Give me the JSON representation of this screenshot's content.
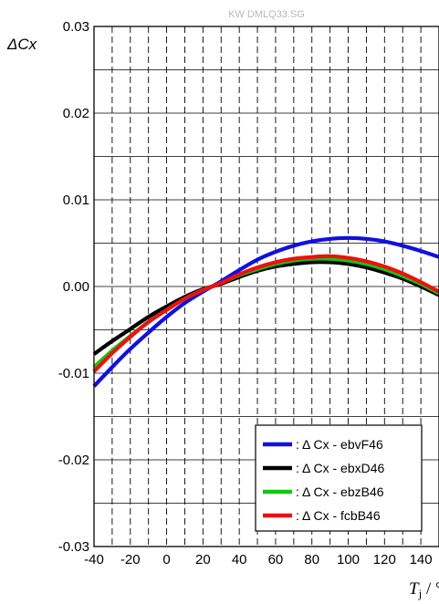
{
  "watermark": "KW DMLQ33.SG",
  "chart_data": {
    "type": "line",
    "ylabel": "ΔCx",
    "xlabel_symbol": "T",
    "xlabel_subscript": "j",
    "xlabel_unit": " / °C",
    "xlim": [
      -40,
      150
    ],
    "ylim": [
      -0.03,
      0.03
    ],
    "x_ticks": [
      -40,
      -20,
      0,
      20,
      40,
      60,
      80,
      100,
      120,
      140
    ],
    "x_tick_labels": [
      "-40",
      "-20",
      "0",
      "20",
      "40",
      "60",
      "80",
      "100",
      "120",
      "140"
    ],
    "y_ticks": [
      -0.03,
      -0.02,
      -0.01,
      0.0,
      0.01,
      0.02,
      0.03
    ],
    "y_tick_labels": [
      "-0.03",
      "-0.02",
      "-0.01",
      "0.00",
      "0.01",
      "0.02",
      "0.03"
    ],
    "grid": "x-minor-dashed, y-major-solid",
    "legend_position": "bottom-right",
    "series": [
      {
        "name": ": Δ Cx - ebvF46",
        "color": "#1010e0",
        "x": [
          -40,
          -30,
          -20,
          -10,
          0,
          10,
          20,
          25,
          30,
          40,
          50,
          60,
          70,
          80,
          90,
          100,
          110,
          120,
          130,
          140,
          150
        ],
        "y": [
          -0.0115,
          -0.0093,
          -0.0072,
          -0.0053,
          -0.0035,
          -0.0019,
          -0.0006,
          0.0,
          0.0006,
          0.0019,
          0.0031,
          0.004,
          0.0047,
          0.0052,
          0.0055,
          0.0056,
          0.0055,
          0.0052,
          0.0047,
          0.0041,
          0.0034
        ]
      },
      {
        "name": ": Δ Cx - ebxD46",
        "color": "#000000",
        "x": [
          -40,
          -30,
          -20,
          -10,
          0,
          10,
          20,
          25,
          30,
          40,
          50,
          60,
          70,
          80,
          90,
          100,
          110,
          120,
          130,
          140,
          150
        ],
        "y": [
          -0.0078,
          -0.0063,
          -0.0049,
          -0.0035,
          -0.0023,
          -0.0012,
          -0.0003,
          0.0,
          0.0003,
          0.0011,
          0.0018,
          0.0023,
          0.0026,
          0.0028,
          0.0028,
          0.0026,
          0.0022,
          0.0016,
          0.0009,
          0.0,
          -0.001
        ]
      },
      {
        "name": ": Δ Cx - ebzB46",
        "color": "#10c810",
        "x": [
          -40,
          -30,
          -20,
          -10,
          0,
          10,
          20,
          25,
          30,
          40,
          50,
          60,
          70,
          80,
          90,
          100,
          110,
          120,
          130,
          140,
          150
        ],
        "y": [
          -0.0093,
          -0.0074,
          -0.0057,
          -0.0041,
          -0.0027,
          -0.0014,
          -0.0004,
          0.0,
          0.0004,
          0.0013,
          0.002,
          0.0026,
          0.003,
          0.0032,
          0.0032,
          0.003,
          0.0026,
          0.002,
          0.0012,
          0.0003,
          -0.0008
        ]
      },
      {
        "name": ": Δ Cx - fcbB46",
        "color": "#ee1010",
        "x": [
          -40,
          -30,
          -20,
          -10,
          0,
          10,
          20,
          25,
          30,
          40,
          50,
          60,
          70,
          80,
          90,
          100,
          110,
          120,
          130,
          140,
          150
        ],
        "y": [
          -0.0098,
          -0.0077,
          -0.0058,
          -0.0041,
          -0.0027,
          -0.0014,
          -0.0004,
          0.0,
          0.0004,
          0.0014,
          0.0022,
          0.0028,
          0.0032,
          0.0034,
          0.0035,
          0.0033,
          0.0029,
          0.0023,
          0.0015,
          0.0005,
          -0.0006
        ]
      }
    ]
  }
}
